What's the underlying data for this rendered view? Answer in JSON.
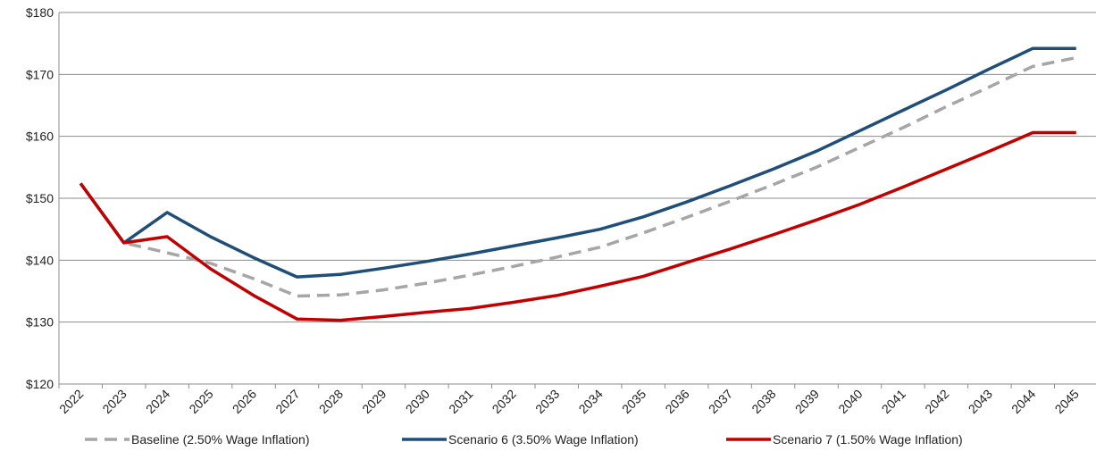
{
  "chart_data": {
    "type": "line",
    "title": "",
    "xlabel": "",
    "ylabel": "",
    "categories": [
      "2022",
      "2023",
      "2024",
      "2025",
      "2026",
      "2027",
      "2028",
      "2029",
      "2030",
      "2031",
      "2032",
      "2033",
      "2034",
      "2035",
      "2036",
      "2037",
      "2038",
      "2039",
      "2040",
      "2041",
      "2042",
      "2043",
      "2044",
      "2045"
    ],
    "ylim": [
      120,
      180
    ],
    "yticks": [
      120,
      130,
      140,
      150,
      160,
      170,
      180
    ],
    "ytick_labels": [
      "$120",
      "$130",
      "$140",
      "$150",
      "$160",
      "$170",
      "$180"
    ],
    "grid": "horizontal",
    "legend_position": "bottom",
    "series": [
      {
        "name": "Baseline (2.50% Wage Inflation)",
        "color": "#a6a6a6",
        "style": "dashed",
        "values": [
          152.4,
          142.8,
          141.2,
          139.5,
          137.0,
          134.2,
          134.4,
          135.2,
          136.3,
          137.6,
          139.0,
          140.5,
          142.1,
          144.4,
          146.9,
          149.5,
          152.2,
          155.0,
          158.2,
          161.4,
          164.8,
          168.0,
          171.3,
          172.7
        ]
      },
      {
        "name": "Scenario 6 (3.50% Wage Inflation)",
        "color": "#1f4e79",
        "style": "solid",
        "values": [
          152.4,
          142.8,
          147.7,
          143.8,
          140.4,
          137.3,
          137.7,
          138.7,
          139.8,
          141.0,
          142.3,
          143.6,
          145.0,
          147.0,
          149.4,
          152.0,
          154.7,
          157.6,
          160.9,
          164.2,
          167.5,
          170.9,
          174.2,
          174.2
        ]
      },
      {
        "name": "Scenario 7 (1.50% Wage Inflation)",
        "color": "#c00000",
        "style": "solid",
        "values": [
          152.4,
          142.8,
          143.8,
          138.6,
          134.3,
          130.5,
          130.3,
          130.9,
          131.6,
          132.2,
          133.2,
          134.3,
          135.8,
          137.4,
          139.6,
          141.8,
          144.1,
          146.5,
          149.0,
          151.8,
          154.7,
          157.6,
          160.6,
          160.6
        ]
      }
    ]
  }
}
